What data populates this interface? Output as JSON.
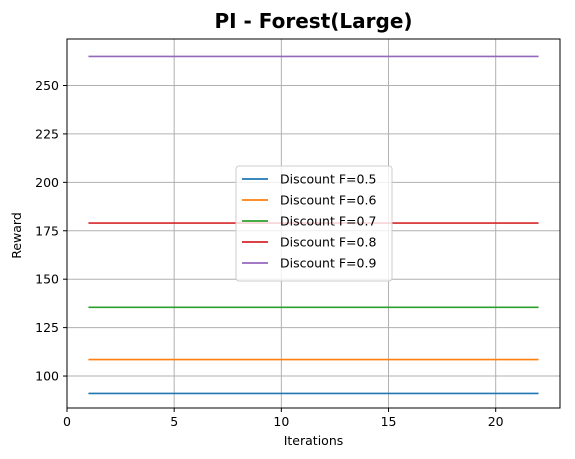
{
  "chart_data": {
    "type": "line",
    "title": "PI - Forest(Large)",
    "xlabel": "Iterations",
    "ylabel": "Reward",
    "xlim": [
      0,
      23
    ],
    "ylim": [
      83.5,
      274
    ],
    "xticks": [
      0,
      5,
      10,
      15,
      20
    ],
    "yticks": [
      100,
      125,
      150,
      175,
      200,
      225,
      250
    ],
    "grid": true,
    "legend_position": "center",
    "x": [
      1,
      2,
      3,
      4,
      5,
      6,
      7,
      8,
      9,
      10,
      11,
      12,
      13,
      14,
      15,
      16,
      17,
      18,
      19,
      20,
      21,
      22
    ],
    "series": [
      {
        "name": "Discount F=0.5",
        "color": "#1f77b4",
        "values": [
          91.0,
          91.0,
          91.0,
          91.0,
          91.0,
          91.0,
          91.0,
          91.0,
          91.0,
          91.0,
          91.0,
          91.0,
          91.0,
          91.0,
          91.0,
          91.0,
          91.0,
          91.0,
          91.0,
          91.0,
          91.0,
          91.0
        ]
      },
      {
        "name": "Discount F=0.6",
        "color": "#ff7f0e",
        "values": [
          108.5,
          108.5,
          108.5,
          108.5,
          108.5,
          108.5,
          108.5,
          108.5,
          108.5,
          108.5,
          108.5,
          108.5,
          108.5,
          108.5,
          108.5,
          108.5,
          108.5,
          108.5,
          108.5,
          108.5,
          108.5,
          108.5
        ]
      },
      {
        "name": "Discount F=0.7",
        "color": "#2ca02c",
        "values": [
          135.5,
          135.5,
          135.5,
          135.5,
          135.5,
          135.5,
          135.5,
          135.5,
          135.5,
          135.5,
          135.5,
          135.5,
          135.5,
          135.5,
          135.5,
          135.5,
          135.5,
          135.5,
          135.5,
          135.5,
          135.5,
          135.5
        ]
      },
      {
        "name": "Discount F=0.8",
        "color": "#d62728",
        "values": [
          179.0,
          179.0,
          179.0,
          179.0,
          179.0,
          179.0,
          179.0,
          179.0,
          179.0,
          179.0,
          179.0,
          179.0,
          179.0,
          179.0,
          179.0,
          179.0,
          179.0,
          179.0,
          179.0,
          179.0,
          179.0,
          179.0
        ]
      },
      {
        "name": "Discount F=0.9",
        "color": "#9467bd",
        "values": [
          265.0,
          265.0,
          265.0,
          265.0,
          265.0,
          265.0,
          265.0,
          265.0,
          265.0,
          265.0,
          265.0,
          265.0,
          265.0,
          265.0,
          265.0,
          265.0,
          265.0,
          265.0,
          265.0,
          265.0,
          265.0,
          265.0
        ]
      }
    ]
  }
}
